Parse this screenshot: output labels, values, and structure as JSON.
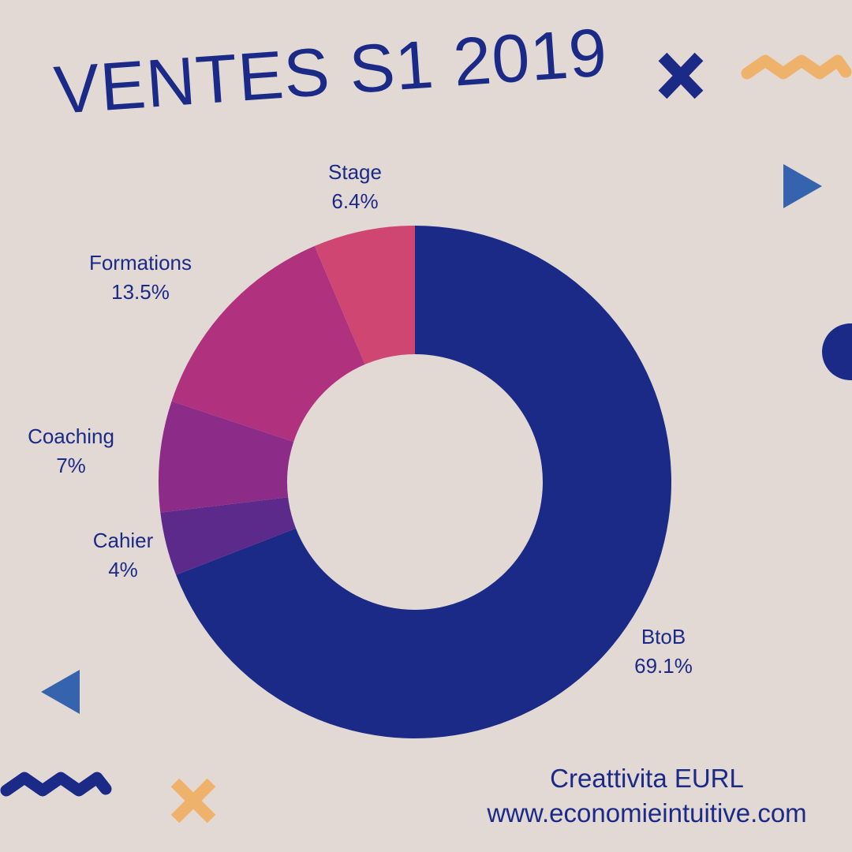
{
  "title": "VENTES S1 2019",
  "footer": {
    "company": "Creattivita EURL",
    "website": "www.economieintuitive.com"
  },
  "colors": {
    "background": "#e2d9d5",
    "text": "#1b2a87",
    "orange": "#efb26b",
    "blue_triangle": "#3563ad"
  },
  "chart_data": {
    "type": "pie",
    "variant": "donut",
    "title": "VENTES S1 2019",
    "start": "top",
    "direction": "clockwise",
    "slices": [
      {
        "label": "BtoB",
        "value": 69.1,
        "value_label": "69.1%",
        "color": "#1b2a87"
      },
      {
        "label": "Cahier",
        "value": 4,
        "value_label": "4%",
        "color": "#5c2a8a"
      },
      {
        "label": "Coaching",
        "value": 7,
        "value_label": "7%",
        "color": "#8c2c88"
      },
      {
        "label": "Formations",
        "value": 13.5,
        "value_label": "13.5%",
        "color": "#b0327e"
      },
      {
        "label": "Stage",
        "value": 6.4,
        "value_label": "6.4%",
        "color": "#cf4673"
      }
    ]
  }
}
